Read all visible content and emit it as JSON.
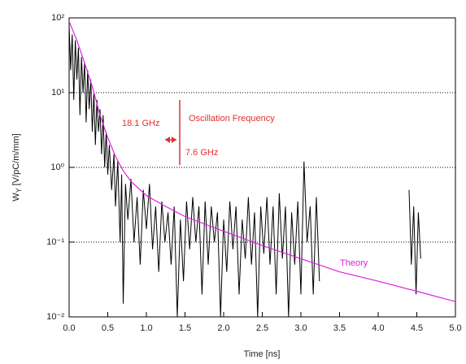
{
  "chart_data": {
    "type": "line",
    "x_label": "Time [ns]",
    "y_label": [
      "W",
      "Y",
      "[V/pC/m/mm]"
    ],
    "xlim": [
      0,
      5
    ],
    "ylim": [
      0.01,
      100
    ],
    "log_y": true,
    "grid": true,
    "xticks": [
      {
        "value": 0,
        "label": "0.0"
      },
      {
        "value": 0.5,
        "label": "0.5"
      },
      {
        "value": 1,
        "label": "1.0"
      },
      {
        "value": 1.5,
        "label": "1.5"
      },
      {
        "value": 2,
        "label": "2.0"
      },
      {
        "value": 2.5,
        "label": "2.5"
      },
      {
        "value": 3,
        "label": "3.0"
      },
      {
        "value": 3.5,
        "label": "3.5"
      },
      {
        "value": 4,
        "label": "4.0"
      },
      {
        "value": 4.5,
        "label": "4.5"
      },
      {
        "value": 5,
        "label": "5.0"
      }
    ],
    "yticks": [
      {
        "value": 0.01,
        "label": "10⁻²"
      },
      {
        "value": 0.1,
        "label": "10⁻¹"
      },
      {
        "value": 1,
        "label": "10⁰"
      },
      {
        "value": 10,
        "label": "10¹"
      },
      {
        "value": 100,
        "label": "10²"
      }
    ],
    "annotations": [
      "Oscillation Frequency",
      "18.1 GHz",
      "7.6 GHz",
      "Theory"
    ],
    "annotation_color": "#e03030",
    "series": [
      {
        "color": "#000000",
        "x": [
          0.0,
          0.02,
          0.04,
          0.06,
          0.08,
          0.1,
          0.12,
          0.14,
          0.16,
          0.18,
          0.2,
          0.22,
          0.24,
          0.26,
          0.28,
          0.3,
          0.32,
          0.34,
          0.36,
          0.38,
          0.4,
          0.42,
          0.44,
          0.46,
          0.48,
          0.5,
          0.52,
          0.55,
          0.58,
          0.6,
          0.63,
          0.66,
          0.68,
          0.7,
          0.73,
          0.76,
          0.8,
          0.84,
          0.88,
          0.92,
          0.96,
          1.0,
          1.04,
          1.08,
          1.12,
          1.16,
          1.2,
          1.24,
          1.28,
          1.32,
          1.36,
          1.4,
          1.44,
          1.48,
          1.52,
          1.56,
          1.6,
          1.64,
          1.68,
          1.72,
          1.76,
          1.8,
          1.84,
          1.88,
          1.92,
          1.96,
          2.0,
          2.04,
          2.08,
          2.12,
          2.16,
          2.2,
          2.24,
          2.28,
          2.32,
          2.36,
          2.4,
          2.44,
          2.48,
          2.52,
          2.56,
          2.6,
          2.64,
          2.68,
          2.72,
          2.76,
          2.8,
          2.84,
          2.88,
          2.92,
          2.96,
          3.0,
          3.04,
          3.08,
          3.12,
          3.16,
          3.2,
          3.24,
          3.3,
          4.4,
          4.43,
          4.46,
          4.49,
          4.52,
          4.55
        ],
        "values": [
          80,
          20,
          60,
          8,
          50,
          15,
          40,
          5,
          30,
          10,
          25,
          4,
          20,
          6,
          15,
          3,
          10,
          2,
          8,
          3,
          6,
          1.5,
          5,
          1,
          3,
          0.8,
          2,
          0.5,
          1.5,
          0.3,
          1.2,
          0.1,
          0.8,
          0.015,
          0.6,
          0.2,
          0.7,
          0.1,
          0.4,
          0.05,
          0.5,
          0.15,
          0.6,
          0.08,
          0.3,
          0.04,
          0.35,
          0.1,
          0.25,
          0.05,
          0.3,
          0.01,
          0.2,
          0.03,
          0.35,
          0.08,
          0.4,
          0.1,
          0.3,
          0.02,
          0.35,
          0.05,
          0.3,
          0.1,
          0.25,
          0.01,
          0.2,
          0.04,
          0.35,
          0.08,
          0.3,
          0.02,
          0.2,
          0.06,
          0.4,
          0.05,
          0.25,
          0.01,
          0.3,
          0.07,
          0.4,
          0.05,
          0.3,
          0.02,
          0.45,
          0.06,
          0.3,
          0.01,
          0.25,
          0.05,
          0.35,
          0.02,
          1.2,
          0.1,
          0.3,
          0.02,
          0.4,
          0.03,
          null,
          0.5,
          0.05,
          0.3,
          0.02,
          0.25,
          0.06
        ]
      },
      {
        "name": "Theory",
        "color": "#e020e0",
        "x": [
          0,
          0.1,
          0.2,
          0.3,
          0.4,
          0.5,
          0.6,
          0.7,
          0.8,
          1.0,
          1.25,
          1.5,
          2.0,
          2.5,
          3.0,
          3.5,
          4.0,
          4.5,
          5.0
        ],
        "values": [
          90,
          50,
          25,
          12,
          5,
          2.5,
          1.4,
          0.9,
          0.65,
          0.42,
          0.3,
          0.22,
          0.14,
          0.09,
          0.06,
          0.04,
          0.03,
          0.022,
          0.016
        ]
      }
    ]
  }
}
